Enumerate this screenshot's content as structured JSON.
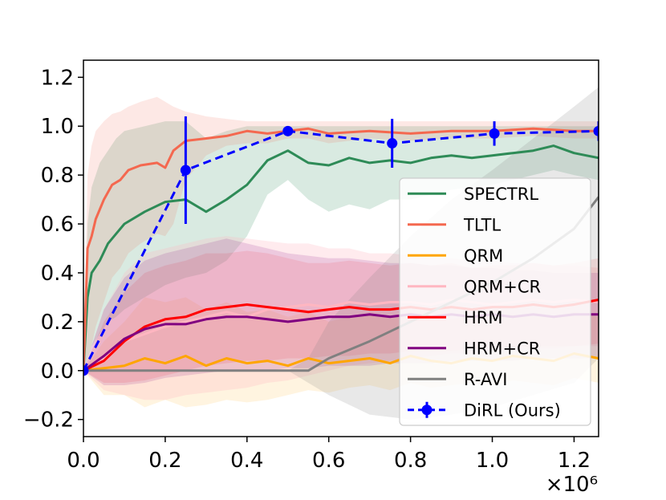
{
  "chart_data": {
    "type": "line",
    "title": "",
    "xlabel": "",
    "ylabel": "",
    "x_multiplier_label": "×10⁶",
    "xlim": [
      0,
      1.26
    ],
    "ylim": [
      -0.27,
      1.27
    ],
    "x_ticks": [
      {
        "value": 0.0,
        "label": "0.0"
      },
      {
        "value": 0.2,
        "label": "0.2"
      },
      {
        "value": 0.4,
        "label": "0.4"
      },
      {
        "value": 0.6,
        "label": "0.6"
      },
      {
        "value": 0.8,
        "label": "0.8"
      },
      {
        "value": 1.0,
        "label": "1.0"
      },
      {
        "value": 1.2,
        "label": "1.2"
      }
    ],
    "y_ticks": [
      {
        "value": -0.2,
        "label": "−0.2"
      },
      {
        "value": 0.0,
        "label": "0.0"
      },
      {
        "value": 0.2,
        "label": "0.2"
      },
      {
        "value": 0.4,
        "label": "0.4"
      },
      {
        "value": 0.6,
        "label": "0.6"
      },
      {
        "value": 0.8,
        "label": "0.8"
      },
      {
        "value": 1.0,
        "label": "1.0"
      },
      {
        "value": 1.2,
        "label": "1.2"
      }
    ],
    "grid": false,
    "legend_position": "lower-right",
    "series": [
      {
        "name": "SPECTRL",
        "color": "#2e8b57",
        "band_opacity": 0.18,
        "x": [
          0.0,
          0.01,
          0.02,
          0.04,
          0.06,
          0.08,
          0.1,
          0.15,
          0.2,
          0.25,
          0.3,
          0.35,
          0.4,
          0.45,
          0.5,
          0.55,
          0.6,
          0.65,
          0.7,
          0.75,
          0.8,
          0.85,
          0.9,
          0.95,
          1.0,
          1.05,
          1.1,
          1.15,
          1.2,
          1.26
        ],
        "y": [
          0.0,
          0.3,
          0.4,
          0.45,
          0.52,
          0.56,
          0.6,
          0.65,
          0.69,
          0.7,
          0.65,
          0.7,
          0.76,
          0.86,
          0.9,
          0.85,
          0.84,
          0.87,
          0.85,
          0.86,
          0.85,
          0.87,
          0.88,
          0.87,
          0.88,
          0.89,
          0.9,
          0.92,
          0.89,
          0.87
        ],
        "lower": [
          0.0,
          0.05,
          0.1,
          0.15,
          0.2,
          0.22,
          0.25,
          0.3,
          0.35,
          0.38,
          0.4,
          0.45,
          0.55,
          0.72,
          0.78,
          0.7,
          0.65,
          0.68,
          0.66,
          0.7,
          0.7,
          0.72,
          0.74,
          0.75,
          0.76,
          0.78,
          0.8,
          0.82,
          0.8,
          0.78
        ],
        "upper": [
          0.0,
          0.6,
          0.75,
          0.85,
          0.9,
          0.95,
          0.98,
          1.0,
          1.02,
          1.02,
          0.95,
          0.98,
          1.0,
          1.0,
          1.0,
          1.0,
          1.0,
          1.0,
          1.0,
          1.0,
          1.0,
          1.0,
          1.0,
          1.0,
          1.0,
          1.0,
          1.0,
          1.0,
          1.0,
          1.0
        ]
      },
      {
        "name": "TLTL",
        "color": "#f4684f",
        "band_opacity": 0.15,
        "x": [
          0.0,
          0.01,
          0.02,
          0.03,
          0.05,
          0.07,
          0.09,
          0.11,
          0.14,
          0.18,
          0.2,
          0.22,
          0.25,
          0.3,
          0.35,
          0.4,
          0.45,
          0.5,
          0.55,
          0.6,
          0.7,
          0.8,
          0.9,
          1.0,
          1.1,
          1.2,
          1.26
        ],
        "y": [
          0.0,
          0.5,
          0.55,
          0.62,
          0.7,
          0.76,
          0.78,
          0.82,
          0.84,
          0.85,
          0.83,
          0.9,
          0.94,
          0.95,
          0.96,
          0.98,
          0.97,
          0.98,
          0.99,
          0.97,
          0.98,
          0.97,
          0.98,
          0.98,
          0.99,
          0.98,
          0.98
        ],
        "lower": [
          0.0,
          0.05,
          0.1,
          0.18,
          0.28,
          0.38,
          0.42,
          0.48,
          0.52,
          0.56,
          0.55,
          0.6,
          0.78,
          0.88,
          0.92,
          0.93,
          0.93,
          0.95,
          0.95,
          0.93,
          0.95,
          0.94,
          0.95,
          0.95,
          0.96,
          0.95,
          0.95
        ],
        "upper": [
          0.0,
          0.8,
          0.92,
          0.98,
          1.02,
          1.05,
          1.06,
          1.08,
          1.1,
          1.12,
          1.1,
          1.08,
          1.06,
          1.04,
          1.03,
          1.02,
          1.02,
          1.02,
          1.02,
          1.02,
          1.02,
          1.02,
          1.02,
          1.02,
          1.02,
          1.02,
          1.02
        ]
      },
      {
        "name": "QRM",
        "color": "#ffa500",
        "band_opacity": 0.12,
        "x": [
          0.0,
          0.05,
          0.1,
          0.15,
          0.2,
          0.25,
          0.3,
          0.35,
          0.4,
          0.45,
          0.5,
          0.55,
          0.6,
          0.65,
          0.7,
          0.75,
          0.8,
          0.85,
          0.9,
          0.95,
          1.0,
          1.05,
          1.1,
          1.15,
          1.2,
          1.26
        ],
        "y": [
          0.0,
          0.01,
          0.02,
          0.05,
          0.03,
          0.06,
          0.02,
          0.05,
          0.03,
          0.04,
          0.02,
          0.05,
          0.03,
          0.04,
          0.05,
          0.03,
          0.06,
          0.04,
          0.03,
          0.05,
          0.04,
          0.06,
          0.05,
          0.04,
          0.07,
          0.05
        ],
        "lower": [
          0.0,
          -0.1,
          -0.1,
          -0.15,
          -0.12,
          -0.15,
          -0.14,
          -0.12,
          -0.13,
          -0.12,
          -0.1,
          -0.08,
          -0.09,
          -0.07,
          -0.06,
          -0.08,
          -0.05,
          -0.07,
          -0.06,
          -0.05,
          -0.06,
          -0.04,
          -0.05,
          -0.06,
          -0.03,
          -0.05
        ],
        "upper": [
          0.0,
          0.12,
          0.2,
          0.3,
          0.28,
          0.3,
          0.25,
          0.28,
          0.24,
          0.25,
          0.22,
          0.24,
          0.2,
          0.22,
          0.23,
          0.22,
          0.24,
          0.22,
          0.21,
          0.22,
          0.22,
          0.23,
          0.22,
          0.22,
          0.24,
          0.22
        ]
      },
      {
        "name": "QRM+CR",
        "color": "#ffb6c1",
        "band_opacity": 0.28,
        "x": [
          0.0,
          0.05,
          0.1,
          0.15,
          0.2,
          0.25,
          0.3,
          0.35,
          0.4,
          0.45,
          0.5,
          0.55,
          0.6,
          0.65,
          0.7,
          0.75,
          0.8,
          0.85,
          0.9,
          0.95,
          1.0,
          1.05,
          1.1,
          1.15,
          1.2,
          1.26
        ],
        "y": [
          0.0,
          0.05,
          0.12,
          0.15,
          0.18,
          0.2,
          0.22,
          0.24,
          0.22,
          0.25,
          0.26,
          0.27,
          0.26,
          0.28,
          0.27,
          0.28,
          0.28,
          0.27,
          0.29,
          0.28,
          0.27,
          0.28,
          0.29,
          0.28,
          0.29,
          0.28
        ],
        "lower": [
          0.0,
          -0.08,
          -0.1,
          -0.12,
          -0.12,
          -0.1,
          -0.09,
          -0.08,
          -0.07,
          -0.05,
          -0.04,
          -0.02,
          0.0,
          0.02,
          0.03,
          0.04,
          0.05,
          0.06,
          0.07,
          0.07,
          0.08,
          0.08,
          0.09,
          0.09,
          0.1,
          0.1
        ],
        "upper": [
          0.0,
          0.25,
          0.4,
          0.48,
          0.5,
          0.52,
          0.54,
          0.55,
          0.54,
          0.53,
          0.52,
          0.52,
          0.5,
          0.5,
          0.48,
          0.48,
          0.47,
          0.46,
          0.46,
          0.45,
          0.45,
          0.44,
          0.44,
          0.43,
          0.43,
          0.42
        ]
      },
      {
        "name": "HRM",
        "color": "#ff0000",
        "band_opacity": 0.1,
        "x": [
          0.0,
          0.05,
          0.1,
          0.15,
          0.2,
          0.25,
          0.3,
          0.35,
          0.4,
          0.45,
          0.5,
          0.55,
          0.6,
          0.65,
          0.7,
          0.75,
          0.8,
          0.85,
          0.9,
          0.95,
          1.0,
          1.05,
          1.1,
          1.15,
          1.2,
          1.26
        ],
        "y": [
          0.0,
          0.04,
          0.12,
          0.18,
          0.21,
          0.22,
          0.25,
          0.26,
          0.27,
          0.26,
          0.25,
          0.24,
          0.25,
          0.26,
          0.25,
          0.25,
          0.26,
          0.25,
          0.26,
          0.25,
          0.26,
          0.26,
          0.27,
          0.26,
          0.27,
          0.29
        ],
        "lower": [
          0.0,
          -0.05,
          -0.05,
          -0.04,
          -0.02,
          0.0,
          0.02,
          0.03,
          0.04,
          0.04,
          0.05,
          0.05,
          0.06,
          0.06,
          0.07,
          0.07,
          0.08,
          0.08,
          0.08,
          0.09,
          0.09,
          0.09,
          0.1,
          0.1,
          0.1,
          0.11
        ],
        "upper": [
          0.0,
          0.2,
          0.32,
          0.4,
          0.43,
          0.45,
          0.48,
          0.48,
          0.49,
          0.48,
          0.46,
          0.44,
          0.44,
          0.45,
          0.44,
          0.43,
          0.44,
          0.43,
          0.44,
          0.42,
          0.43,
          0.43,
          0.44,
          0.43,
          0.44,
          0.46
        ]
      },
      {
        "name": "HRM+CR",
        "color": "#800080",
        "band_opacity": 0.14,
        "x": [
          0.0,
          0.05,
          0.1,
          0.15,
          0.2,
          0.25,
          0.3,
          0.35,
          0.4,
          0.45,
          0.5,
          0.55,
          0.6,
          0.65,
          0.7,
          0.75,
          0.8,
          0.85,
          0.9,
          0.95,
          1.0,
          1.05,
          1.1,
          1.15,
          1.2,
          1.26
        ],
        "y": [
          0.0,
          0.06,
          0.13,
          0.17,
          0.19,
          0.19,
          0.21,
          0.22,
          0.22,
          0.21,
          0.2,
          0.21,
          0.22,
          0.22,
          0.23,
          0.22,
          0.23,
          0.22,
          0.23,
          0.22,
          0.23,
          0.22,
          0.23,
          0.22,
          0.23,
          0.23
        ],
        "lower": [
          0.0,
          -0.06,
          -0.06,
          -0.05,
          -0.03,
          -0.02,
          -0.01,
          0.0,
          0.0,
          0.0,
          0.01,
          0.01,
          0.02,
          0.02,
          0.02,
          0.03,
          0.03,
          0.03,
          0.04,
          0.04,
          0.04,
          0.04,
          0.05,
          0.05,
          0.05,
          0.05
        ],
        "upper": [
          0.0,
          0.25,
          0.38,
          0.45,
          0.48,
          0.5,
          0.52,
          0.54,
          0.52,
          0.5,
          0.48,
          0.47,
          0.46,
          0.46,
          0.45,
          0.44,
          0.44,
          0.43,
          0.43,
          0.42,
          0.42,
          0.41,
          0.41,
          0.4,
          0.4,
          0.4
        ]
      },
      {
        "name": "R-AVI",
        "color": "#808080",
        "band_opacity": 0.18,
        "x": [
          0.0,
          0.1,
          0.2,
          0.3,
          0.4,
          0.5,
          0.55,
          0.6,
          0.7,
          0.8,
          0.9,
          1.0,
          1.1,
          1.2,
          1.26
        ],
        "y": [
          0.0,
          0.0,
          0.0,
          0.0,
          0.0,
          0.0,
          0.0,
          0.05,
          0.12,
          0.2,
          0.28,
          0.36,
          0.46,
          0.58,
          0.71
        ],
        "lower": [
          0.0,
          0.0,
          0.0,
          0.0,
          0.0,
          0.0,
          -0.05,
          -0.1,
          -0.18,
          -0.2,
          -0.18,
          -0.15,
          -0.1,
          -0.05,
          0.05
        ],
        "upper": [
          0.0,
          0.0,
          0.0,
          0.0,
          0.0,
          0.0,
          0.05,
          0.2,
          0.38,
          0.55,
          0.7,
          0.82,
          0.95,
          1.08,
          1.16
        ]
      }
    ],
    "errorbar_series": {
      "name": "DiRL (Ours)",
      "color": "#0000ff",
      "x": [
        0.0,
        0.25,
        0.5,
        0.755,
        1.005,
        1.26
      ],
      "y": [
        0.0,
        0.82,
        0.98,
        0.93,
        0.97,
        0.98
      ],
      "err": [
        0.01,
        0.22,
        0.02,
        0.1,
        0.05,
        0.04
      ]
    }
  }
}
